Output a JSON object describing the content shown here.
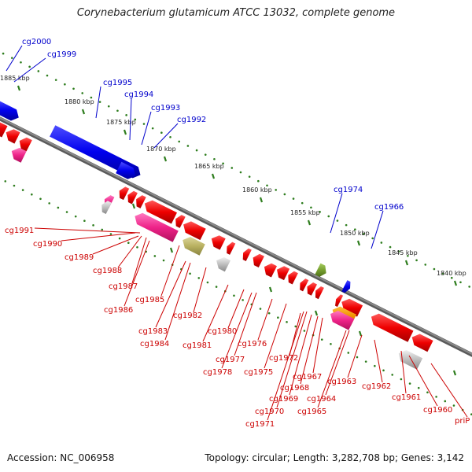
{
  "title": "Corynebacterium glutamicum ATCC 13032, complete genome",
  "footer": {
    "accession": "Accession: NC_006958",
    "topology": "Topology: circular; Length: 3,282,708 bp; Genes: 3,142"
  },
  "colors": {
    "backbone": "#8a8a8a",
    "tick": "#2e7d1e",
    "forward_label": "#0000cc",
    "reverse_label": "#cc0000",
    "forward_gene": "#0000ee",
    "reverse_gene": "#ee0000",
    "pink_gene": "#ee2288",
    "olive_gene": "#b8b060",
    "green_gene": "#77a030",
    "gray_gene": "#b8b8b8",
    "orange_gene": "#f09000"
  },
  "ticks": [
    "1885 kbp",
    "1880 kbp",
    "1875 kbp",
    "1870 kbp",
    "1865 kbp",
    "1860 kbp",
    "1855 kbp",
    "1850 kbp",
    "1845 kbp",
    "1840 kbp"
  ],
  "forward_labels": [
    "cg2000",
    "cg1999",
    "cg1995",
    "cg1994",
    "cg1993",
    "cg1992",
    "cg1974",
    "cg1966"
  ],
  "reverse_labels": [
    "cg1991",
    "cg1990",
    "cg1989",
    "cg1988",
    "cg1987",
    "cg1986",
    "cg1985",
    "cg1983",
    "cg1984",
    "cg1982",
    "cg1981",
    "cg1980",
    "cg1978",
    "cg1977",
    "cg1976",
    "cg1975",
    "cg1972",
    "cg1971",
    "cg1970",
    "cg1969",
    "cg1968",
    "cg1967",
    "cg1965",
    "cg1964",
    "cg1963",
    "cg1962",
    "cg1961",
    "cg1960",
    "priP"
  ]
}
